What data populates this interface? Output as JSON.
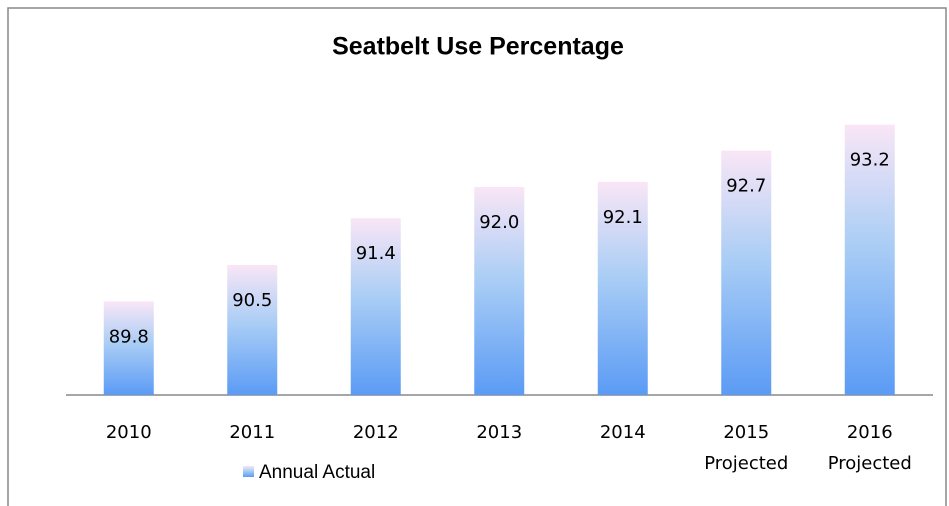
{
  "chart_data": {
    "type": "bar",
    "title": "Seatbelt Use Percentage",
    "categories": [
      "2010",
      "2011",
      "2012",
      "2013",
      "2014",
      "2015\nProjected",
      "2016\nProjected"
    ],
    "series": [
      {
        "name": "Annual Actual",
        "color": "#5b9bf5",
        "values": [
          89.8,
          90.5,
          91.4,
          92.0,
          92.1,
          92.7,
          93.2
        ],
        "value_labels": [
          "89.8",
          "90.5",
          "91.4",
          "92.0",
          "92.1",
          "92.7",
          "93.2"
        ]
      }
    ],
    "ylim": [
      88,
      94
    ],
    "legend": "bottom-left"
  }
}
